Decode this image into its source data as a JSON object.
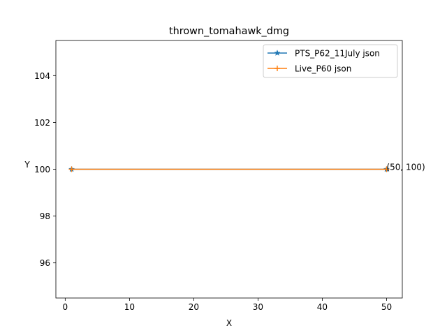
{
  "chart_data": {
    "type": "line",
    "title": "thrown_tomahawk_dmg",
    "xlabel": "X",
    "ylabel": "Y",
    "xlim": [
      -1.45,
      52.45
    ],
    "ylim": [
      94.5,
      105.5
    ],
    "xticks": [
      0,
      10,
      20,
      30,
      40,
      50
    ],
    "yticks": [
      96,
      98,
      100,
      102,
      104
    ],
    "grid": false,
    "legend_position": "top-right",
    "series": [
      {
        "name": "PTS_P62_11July json",
        "marker": "star",
        "color": "#1f77b4",
        "x": [
          1,
          50
        ],
        "y": [
          100,
          100
        ]
      },
      {
        "name": "Live_P60 json",
        "marker": "plus",
        "color": "#ff7f0e",
        "x": [
          1,
          50
        ],
        "y": [
          100,
          100
        ]
      }
    ],
    "annotations": [
      {
        "text": "(50, 100)",
        "x": 50,
        "y": 100
      }
    ]
  }
}
